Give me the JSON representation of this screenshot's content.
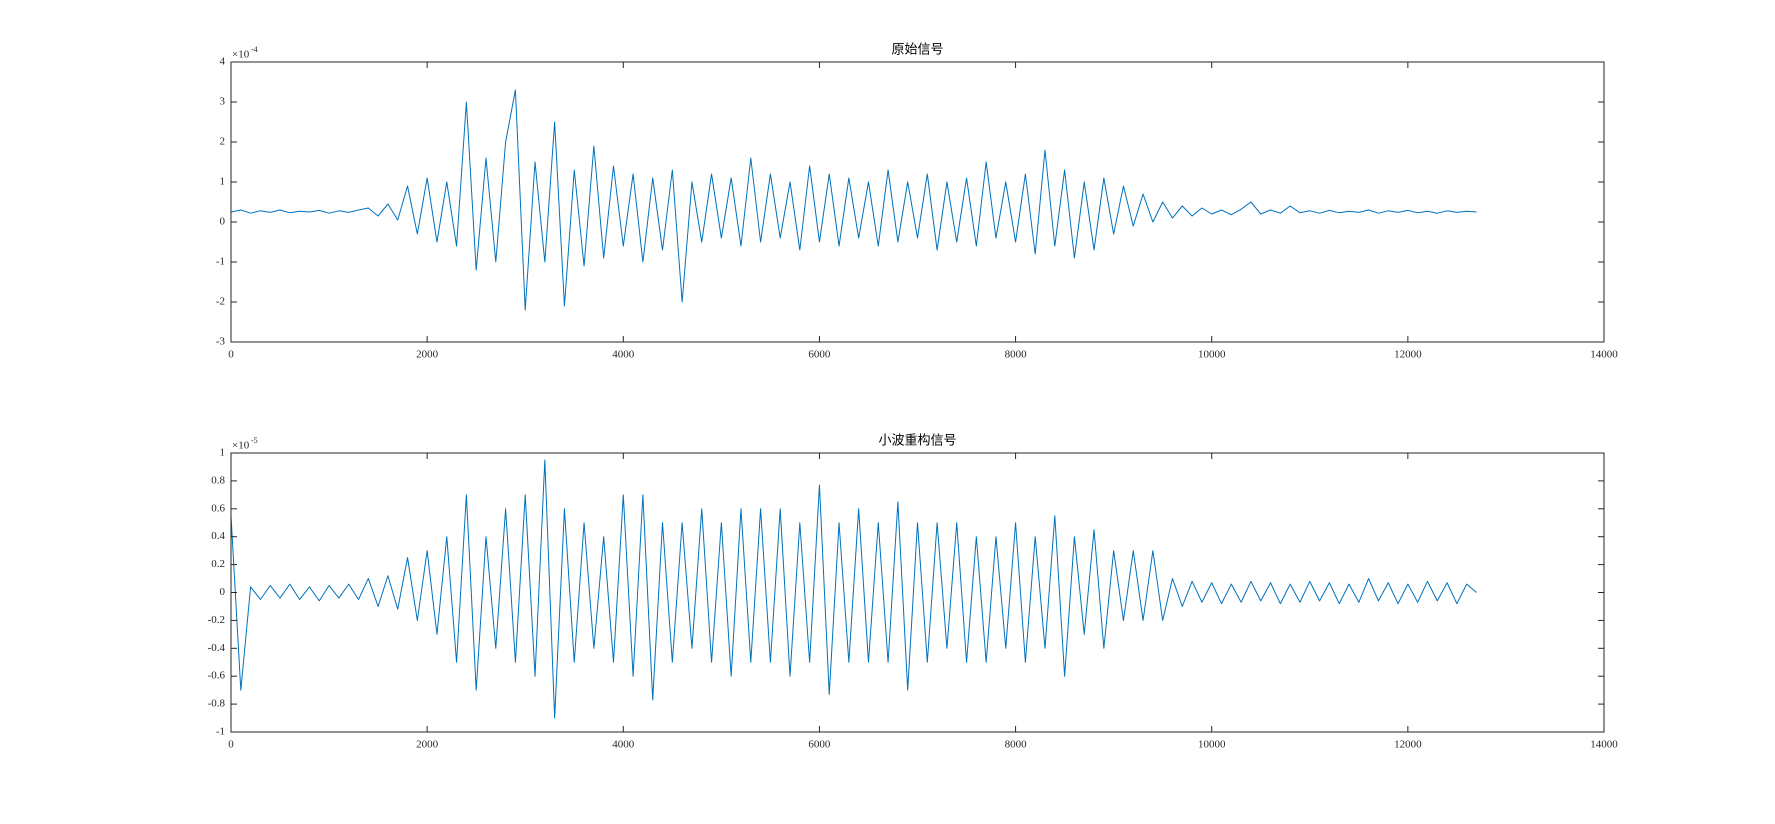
{
  "chart_data": [
    {
      "type": "line",
      "title": "原始信号",
      "y_multiplier": {
        "base": "×10",
        "exponent": "-4"
      },
      "x": [
        0,
        100,
        200,
        300,
        400,
        500,
        600,
        700,
        800,
        900,
        1000,
        1100,
        1200,
        1300,
        1400,
        1500,
        1600,
        1700,
        1800,
        1900,
        2000,
        2100,
        2200,
        2300,
        2400,
        2500,
        2600,
        2700,
        2800,
        2900,
        3000,
        3100,
        3200,
        3300,
        3400,
        3500,
        3600,
        3700,
        3800,
        3900,
        4000,
        4100,
        4200,
        4300,
        4400,
        4500,
        4600,
        4700,
        4800,
        4900,
        5000,
        5100,
        5200,
        5300,
        5400,
        5500,
        5600,
        5700,
        5800,
        5900,
        6000,
        6100,
        6200,
        6300,
        6400,
        6500,
        6600,
        6700,
        6800,
        6900,
        7000,
        7100,
        7200,
        7300,
        7400,
        7500,
        7600,
        7700,
        7800,
        7900,
        8000,
        8100,
        8200,
        8300,
        8400,
        8500,
        8600,
        8700,
        8800,
        8900,
        9000,
        9100,
        9200,
        9300,
        9400,
        9500,
        9600,
        9700,
        9800,
        9900,
        10000,
        10100,
        10200,
        10300,
        10400,
        10500,
        10600,
        10700,
        10800,
        10900,
        11000,
        11100,
        11200,
        11300,
        11400,
        11500,
        11600,
        11700,
        11800,
        11900,
        12000,
        12100,
        12200,
        12300,
        12400,
        12500,
        12600,
        12700
      ],
      "series": [
        {
          "color": "#0072bd",
          "values": [
            0.25,
            0.3,
            0.22,
            0.28,
            0.24,
            0.3,
            0.23,
            0.27,
            0.25,
            0.29,
            0.22,
            0.28,
            0.24,
            0.3,
            0.35,
            0.15,
            0.45,
            0.05,
            0.9,
            -0.3,
            1.1,
            -0.5,
            1.0,
            -0.6,
            3.0,
            -1.2,
            1.6,
            -1.0,
            2.0,
            3.3,
            -2.2,
            1.5,
            -1.0,
            2.5,
            -2.1,
            1.3,
            -1.1,
            1.9,
            -0.9,
            1.4,
            -0.6,
            1.2,
            -1.0,
            1.1,
            -0.7,
            1.3,
            -2.0,
            1.0,
            -0.5,
            1.2,
            -0.4,
            1.1,
            -0.6,
            1.6,
            -0.5,
            1.2,
            -0.4,
            1.0,
            -0.7,
            1.4,
            -0.5,
            1.2,
            -0.6,
            1.1,
            -0.4,
            1.0,
            -0.6,
            1.3,
            -0.5,
            1.0,
            -0.4,
            1.2,
            -0.7,
            1.0,
            -0.5,
            1.1,
            -0.6,
            1.5,
            -0.4,
            1.0,
            -0.5,
            1.2,
            -0.8,
            1.8,
            -0.6,
            1.3,
            -0.9,
            1.0,
            -0.7,
            1.1,
            -0.3,
            0.9,
            -0.1,
            0.7,
            0.0,
            0.5,
            0.1,
            0.4,
            0.15,
            0.35,
            0.2,
            0.3,
            0.18,
            0.32,
            0.5,
            0.2,
            0.3,
            0.22,
            0.4,
            0.23,
            0.28,
            0.22,
            0.29,
            0.23,
            0.27,
            0.24,
            0.3,
            0.22,
            0.28,
            0.24,
            0.29,
            0.23,
            0.27,
            0.22,
            0.28,
            0.24,
            0.27,
            0.25
          ]
        }
      ],
      "xlim": [
        0,
        14000
      ],
      "xticks": [
        0,
        2000,
        4000,
        6000,
        8000,
        10000,
        12000,
        14000
      ],
      "ylim": [
        -3,
        4
      ],
      "yticks": [
        -3,
        -2,
        -1,
        0,
        1,
        2,
        3,
        4
      ]
    },
    {
      "type": "line",
      "title": "小波重构信号",
      "y_multiplier": {
        "base": "×10",
        "exponent": "-5"
      },
      "x": [
        0,
        100,
        200,
        300,
        400,
        500,
        600,
        700,
        800,
        900,
        1000,
        1100,
        1200,
        1300,
        1400,
        1500,
        1600,
        1700,
        1800,
        1900,
        2000,
        2100,
        2200,
        2300,
        2400,
        2500,
        2600,
        2700,
        2800,
        2900,
        3000,
        3100,
        3200,
        3300,
        3400,
        3500,
        3600,
        3700,
        3800,
        3900,
        4000,
        4100,
        4200,
        4300,
        4400,
        4500,
        4600,
        4700,
        4800,
        4900,
        5000,
        5100,
        5200,
        5300,
        5400,
        5500,
        5600,
        5700,
        5800,
        5900,
        6000,
        6100,
        6200,
        6300,
        6400,
        6500,
        6600,
        6700,
        6800,
        6900,
        7000,
        7100,
        7200,
        7300,
        7400,
        7500,
        7600,
        7700,
        7800,
        7900,
        8000,
        8100,
        8200,
        8300,
        8400,
        8500,
        8600,
        8700,
        8800,
        8900,
        9000,
        9100,
        9200,
        9300,
        9400,
        9500,
        9600,
        9700,
        9800,
        9900,
        10000,
        10100,
        10200,
        10300,
        10400,
        10500,
        10600,
        10700,
        10800,
        10900,
        11000,
        11100,
        11200,
        11300,
        11400,
        11500,
        11600,
        11700,
        11800,
        11900,
        12000,
        12100,
        12200,
        12300,
        12400,
        12500,
        12600,
        12700
      ],
      "series": [
        {
          "color": "#0072bd",
          "values": [
            0.55,
            -0.7,
            0.04,
            -0.05,
            0.05,
            -0.04,
            0.06,
            -0.05,
            0.04,
            -0.06,
            0.05,
            -0.04,
            0.06,
            -0.05,
            0.1,
            -0.1,
            0.12,
            -0.12,
            0.25,
            -0.2,
            0.3,
            -0.3,
            0.4,
            -0.5,
            0.7,
            -0.7,
            0.4,
            -0.4,
            0.6,
            -0.5,
            0.7,
            -0.6,
            0.95,
            -0.9,
            0.6,
            -0.5,
            0.5,
            -0.4,
            0.4,
            -0.5,
            0.7,
            -0.6,
            0.7,
            -0.77,
            0.5,
            -0.5,
            0.5,
            -0.4,
            0.6,
            -0.5,
            0.5,
            -0.6,
            0.6,
            -0.5,
            0.6,
            -0.5,
            0.6,
            -0.6,
            0.5,
            -0.5,
            0.77,
            -0.73,
            0.5,
            -0.5,
            0.6,
            -0.5,
            0.5,
            -0.5,
            0.65,
            -0.7,
            0.5,
            -0.5,
            0.5,
            -0.4,
            0.5,
            -0.5,
            0.4,
            -0.5,
            0.4,
            -0.4,
            0.5,
            -0.5,
            0.4,
            -0.4,
            0.55,
            -0.6,
            0.4,
            -0.3,
            0.45,
            -0.4,
            0.3,
            -0.2,
            0.3,
            -0.2,
            0.3,
            -0.2,
            0.1,
            -0.1,
            0.08,
            -0.07,
            0.07,
            -0.08,
            0.06,
            -0.07,
            0.08,
            -0.06,
            0.07,
            -0.08,
            0.06,
            -0.07,
            0.08,
            -0.06,
            0.07,
            -0.08,
            0.06,
            -0.07,
            0.1,
            -0.06,
            0.07,
            -0.08,
            0.06,
            -0.07,
            0.08,
            -0.06,
            0.07,
            -0.08,
            0.06,
            0
          ]
        }
      ],
      "xlim": [
        0,
        14000
      ],
      "xticks": [
        0,
        2000,
        4000,
        6000,
        8000,
        10000,
        12000,
        14000
      ],
      "ylim": [
        -1,
        1
      ],
      "yticks": [
        -1,
        -0.8,
        -0.6,
        -0.4,
        -0.2,
        0,
        0.2,
        0.4,
        0.6,
        0.8,
        1
      ]
    }
  ]
}
